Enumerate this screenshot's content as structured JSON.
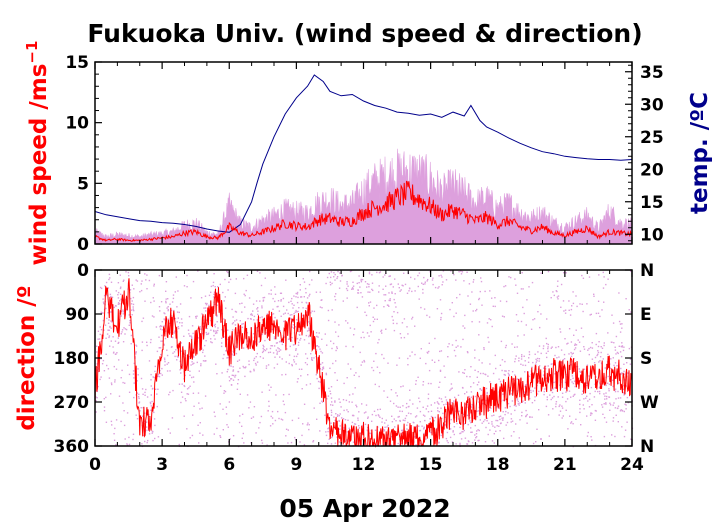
{
  "title": "Fukuoka Univ. (wind speed & direction)",
  "date_label": "05 Apr 2022",
  "colors": {
    "wind_mean": "#ff0000",
    "wind_gust": "#dda0dd",
    "temperature": "#00008b",
    "axis": "#000000"
  },
  "chart_data": [
    {
      "type": "line",
      "panel": "wind-speed-temperature",
      "xlabel": "05 Apr 2022",
      "ylabel": "wind speed /ms",
      "ylabel_superscript": "−1",
      "y2label": "temp. /ºC",
      "xlim": [
        0,
        24
      ],
      "ylim": [
        0,
        15
      ],
      "y2lim": [
        8.5,
        36.5
      ],
      "x_ticks": [
        "0",
        "3",
        "6",
        "9",
        "12",
        "15",
        "18",
        "21",
        "24"
      ],
      "y_ticks": [
        "0",
        "5",
        "10",
        "15"
      ],
      "y2_ticks": [
        "10",
        "15",
        "20",
        "25",
        "30",
        "35"
      ],
      "series": [
        {
          "role": "wind-speed-mean",
          "x": [
            0,
            0.5,
            1,
            1.5,
            2,
            2.5,
            3,
            3.5,
            4,
            4.5,
            5,
            5.5,
            6,
            6.5,
            7,
            7.5,
            8,
            8.5,
            9,
            9.5,
            10,
            10.5,
            11,
            11.5,
            12,
            12.5,
            13,
            13.5,
            14,
            14.5,
            15,
            15.5,
            16,
            16.5,
            17,
            17.5,
            18,
            18.5,
            19,
            19.5,
            20,
            20.5,
            21,
            21.5,
            22,
            22.5,
            23,
            23.5,
            24
          ],
          "y": [
            0.6,
            0.3,
            0.4,
            0.3,
            0.3,
            0.4,
            0.5,
            0.6,
            0.9,
            1.0,
            0.6,
            0.5,
            1.4,
            0.9,
            0.7,
            1.0,
            1.3,
            1.7,
            1.5,
            1.4,
            2.0,
            2.1,
            1.8,
            1.9,
            2.6,
            3.0,
            3.3,
            3.8,
            4.2,
            3.7,
            3.1,
            2.4,
            2.8,
            2.4,
            1.9,
            2.2,
            1.6,
            1.9,
            1.4,
            1.1,
            1.4,
            0.9,
            0.7,
            1.0,
            1.3,
            0.6,
            1.0,
            0.9,
            0.8
          ]
        },
        {
          "role": "wind-speed-max",
          "x": [
            0,
            0.5,
            1,
            1.5,
            2,
            2.5,
            3,
            3.5,
            4,
            4.5,
            5,
            5.5,
            6,
            6.5,
            7,
            7.5,
            8,
            8.5,
            9,
            9.5,
            10,
            10.5,
            11,
            11.5,
            12,
            12.5,
            13,
            13.5,
            14,
            14.5,
            15,
            15.5,
            16,
            16.5,
            17,
            17.5,
            18,
            18.5,
            19,
            19.5,
            20,
            20.5,
            21,
            21.5,
            22,
            22.5,
            23,
            23.5,
            24
          ],
          "y": [
            1.2,
            0.7,
            0.9,
            0.8,
            0.7,
            0.9,
            1.0,
            1.2,
            1.8,
            2.0,
            1.1,
            0.9,
            3.7,
            2.0,
            1.6,
            2.3,
            2.7,
            3.3,
            3.1,
            3.0,
            4.0,
            4.3,
            3.7,
            3.9,
            5.1,
            6.0,
            6.5,
            6.9,
            7.0,
            6.8,
            6.2,
            5.0,
            5.6,
            4.9,
            4.0,
            4.4,
            3.4,
            3.9,
            3.0,
            2.5,
            3.0,
            2.1,
            1.6,
            2.2,
            2.7,
            1.5,
            3.2,
            2.0,
            1.9
          ]
        },
        {
          "role": "temperature",
          "axis": "y2",
          "x": [
            0,
            0.5,
            1,
            1.5,
            2,
            2.5,
            3,
            3.5,
            4,
            4.5,
            5,
            5.5,
            6,
            6.5,
            7,
            7.25,
            7.5,
            8,
            8.5,
            9,
            9.5,
            9.8,
            10.2,
            10.5,
            11,
            11.5,
            12,
            12.5,
            13,
            13.5,
            14,
            14.5,
            15,
            15.5,
            16,
            16.5,
            16.8,
            17.2,
            17.5,
            18,
            18.5,
            19,
            19.5,
            20,
            20.5,
            21,
            21.5,
            22,
            22.5,
            23,
            23.5,
            24
          ],
          "y": [
            13.5,
            13.0,
            12.7,
            12.4,
            12.1,
            12.0,
            11.8,
            11.7,
            11.5,
            11.2,
            10.8,
            10.5,
            10.3,
            11.5,
            15.0,
            18.0,
            20.8,
            25.0,
            28.5,
            31.0,
            32.8,
            34.5,
            33.5,
            32.0,
            31.3,
            31.5,
            30.5,
            29.8,
            29.4,
            28.8,
            28.6,
            28.3,
            28.5,
            28.0,
            28.8,
            28.2,
            29.8,
            27.5,
            26.5,
            25.7,
            24.8,
            24.0,
            23.3,
            22.7,
            22.4,
            22.0,
            21.8,
            21.6,
            21.5,
            21.5,
            21.4,
            21.5
          ]
        }
      ]
    },
    {
      "type": "scatter",
      "panel": "wind-direction",
      "xlabel": "05 Apr 2022",
      "ylabel": "direction /º",
      "xlim": [
        0,
        24
      ],
      "ylim": [
        360,
        0
      ],
      "x_ticks": [
        "0",
        "3",
        "6",
        "9",
        "12",
        "15",
        "18",
        "21",
        "24"
      ],
      "y_ticks": [
        "0",
        "90",
        "180",
        "270",
        "360"
      ],
      "y2_ticks": [
        "N",
        "E",
        "S",
        "W",
        "N"
      ],
      "series": [
        {
          "role": "direction-mean",
          "x": [
            0,
            0.5,
            1,
            1.5,
            2,
            2.5,
            3,
            3.5,
            4,
            4.5,
            5,
            5.5,
            6,
            6.5,
            7,
            7.5,
            8,
            8.5,
            9,
            9.5,
            10,
            10.5,
            11,
            11.5,
            12,
            12.5,
            13,
            13.5,
            14,
            14.5,
            15,
            15.5,
            16,
            16.5,
            17,
            17.5,
            18,
            18.5,
            19,
            19.5,
            20,
            20.5,
            21,
            21.5,
            22,
            22.5,
            23,
            23.5,
            24
          ],
          "y": [
            250,
            60,
            120,
            40,
            320,
            300,
            140,
            100,
            200,
            150,
            110,
            60,
            170,
            130,
            140,
            120,
            110,
            130,
            120,
            80,
            200,
            320,
            330,
            340,
            345,
            350,
            355,
            345,
            340,
            350,
            335,
            320,
            290,
            300,
            280,
            270,
            260,
            250,
            240,
            230,
            220,
            215,
            220,
            210,
            230,
            215,
            210,
            220,
            225
          ]
        },
        {
          "role": "direction-scatter",
          "x": [
            0.3,
            0.8,
            1.4,
            2.1,
            2.7,
            3.3,
            3.9,
            4.6,
            5.2,
            5.8,
            6.4,
            7.1,
            7.7,
            8.3,
            8.9,
            9.4,
            10.1,
            10.7,
            11.3,
            11.9,
            12.6,
            13.2,
            13.8,
            14.4,
            15.1,
            15.7,
            16.3,
            16.9,
            17.6,
            18.2,
            18.8,
            19.4,
            20.1,
            20.7,
            21.3,
            21.9,
            22.6,
            23.2,
            23.8
          ],
          "y": [
            100,
            40,
            150,
            20,
            260,
            60,
            170,
            10,
            130,
            220,
            60,
            190,
            90,
            160,
            30,
            120,
            300,
            20,
            340,
            250,
            350,
            10,
            300,
            330,
            20,
            270,
            180,
            60,
            210,
            110,
            260,
            140,
            190,
            50,
            230,
            120,
            200,
            160,
            240
          ]
        }
      ]
    }
  ]
}
